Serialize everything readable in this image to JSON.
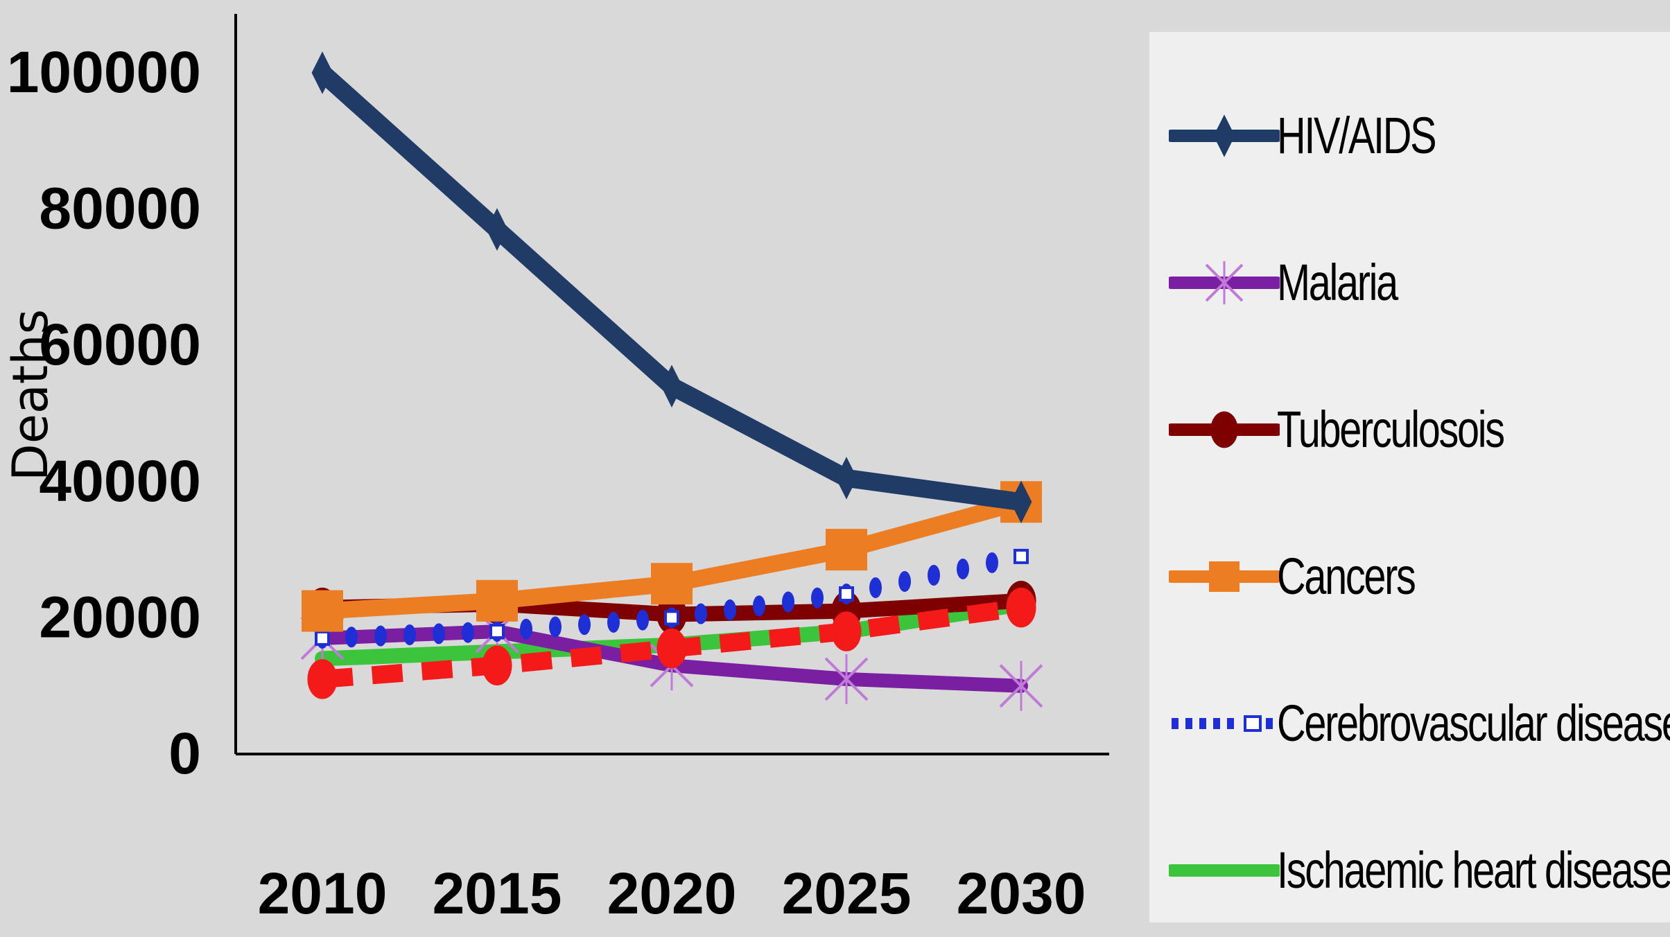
{
  "chart_data": {
    "type": "line",
    "title": "",
    "xlabel": "",
    "ylabel": "Deaths",
    "x": [
      2010,
      2015,
      2020,
      2025,
      2030
    ],
    "ylim": [
      0,
      100000
    ],
    "yticks": [
      "0",
      "20000",
      "40000",
      "60000",
      "80000",
      "100000"
    ],
    "xticks": [
      "2010",
      "2015",
      "2020",
      "2025",
      "2030"
    ],
    "grid": false,
    "legend": {
      "position": "right",
      "entries": [
        "HIV/AIDS",
        "Malaria",
        "Tuberculosois",
        "Cancers",
        "Cerebrovascular disease",
        "Ischaemic heart disease"
      ]
    },
    "series": [
      {
        "name": "HIV/AIDS",
        "values": [
          100000,
          77000,
          54000,
          40500,
          37000
        ],
        "color": "#1f3b66",
        "marker": "diamond",
        "style": "solid"
      },
      {
        "name": "Malaria",
        "values": [
          17000,
          18000,
          13000,
          11000,
          10000
        ],
        "color": "#7a1fa2",
        "marker": "x",
        "style": "solid"
      },
      {
        "name": "Tuberculosois",
        "values": [
          21500,
          22000,
          20500,
          21000,
          22500
        ],
        "color": "#7f0000",
        "marker": "circle",
        "style": "solid"
      },
      {
        "name": "Cancers",
        "values": [
          21000,
          22500,
          25000,
          30000,
          37000
        ],
        "color": "#ed7d22",
        "marker": "square",
        "style": "solid"
      },
      {
        "name": "Cerebrovascular disease",
        "values": [
          17000,
          18000,
          20000,
          23500,
          29000
        ],
        "color": "#1f2fd6",
        "marker": "square-open",
        "style": "dotted"
      },
      {
        "name": "Ischaemic heart disease",
        "values": [
          14000,
          15000,
          16000,
          18000,
          22000
        ],
        "color": "#3cc43c",
        "marker": "none",
        "style": "solid"
      },
      {
        "name": "",
        "values": [
          11000,
          13000,
          15500,
          18000,
          21500
        ],
        "color": "#f51a1a",
        "marker": "circle",
        "style": "dashed"
      }
    ]
  }
}
